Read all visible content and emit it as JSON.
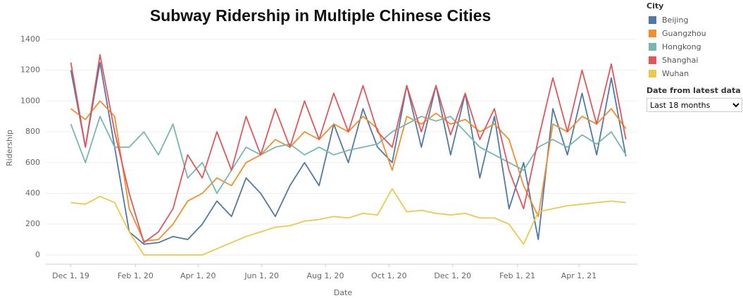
{
  "chart_data": {
    "type": "line",
    "title": "Subway Ridership in Multiple Chinese Cities",
    "x_label": "Date",
    "y_label": "Ridership",
    "legend_title": "City",
    "filter_label": "Date from latest data",
    "filter_value": "Last 18 months",
    "x": [
      "2019-12-01",
      "2019-12-15",
      "2019-12-29",
      "2020-01-12",
      "2020-01-26",
      "2020-02-09",
      "2020-02-23",
      "2020-03-08",
      "2020-03-22",
      "2020-04-05",
      "2020-04-19",
      "2020-05-03",
      "2020-05-17",
      "2020-05-31",
      "2020-06-14",
      "2020-06-28",
      "2020-07-12",
      "2020-07-26",
      "2020-08-09",
      "2020-08-23",
      "2020-09-06",
      "2020-09-20",
      "2020-10-04",
      "2020-10-18",
      "2020-11-01",
      "2020-11-15",
      "2020-11-29",
      "2020-12-13",
      "2020-12-27",
      "2021-01-10",
      "2021-01-24",
      "2021-02-07",
      "2021-02-21",
      "2021-03-07",
      "2021-03-21",
      "2021-04-04",
      "2021-04-18",
      "2021-05-02",
      "2021-05-16"
    ],
    "series": [
      {
        "name": "Beijing",
        "color": "#4e79a7",
        "values": [
          1200,
          700,
          1250,
          700,
          150,
          70,
          80,
          120,
          100,
          200,
          350,
          250,
          500,
          400,
          250,
          450,
          600,
          450,
          850,
          600,
          950,
          700,
          600,
          1100,
          700,
          1100,
          650,
          1050,
          500,
          900,
          300,
          600,
          100,
          950,
          650,
          1050,
          650,
          1150,
          640
        ]
      },
      {
        "name": "Guangzhou",
        "color": "#f28e2b",
        "values": [
          950,
          880,
          1000,
          900,
          300,
          90,
          100,
          200,
          350,
          400,
          500,
          450,
          600,
          650,
          750,
          700,
          800,
          750,
          850,
          800,
          900,
          820,
          550,
          900,
          850,
          920,
          850,
          880,
          800,
          850,
          750,
          450,
          250,
          850,
          800,
          900,
          850,
          950,
          820
        ]
      },
      {
        "name": "Hongkong",
        "color": "#76b7b2",
        "values": [
          850,
          600,
          900,
          700,
          700,
          800,
          650,
          850,
          500,
          600,
          400,
          550,
          700,
          650,
          700,
          720,
          650,
          700,
          650,
          680,
          700,
          720,
          800,
          850,
          900,
          870,
          900,
          800,
          700,
          650,
          600,
          550,
          700,
          750,
          700,
          780,
          720,
          800,
          650
        ]
      },
      {
        "name": "Shanghai",
        "color": "#e15759",
        "values": [
          1250,
          700,
          1300,
          800,
          400,
          80,
          150,
          300,
          650,
          500,
          800,
          550,
          900,
          650,
          950,
          700,
          1000,
          750,
          1050,
          800,
          1100,
          800,
          700,
          1100,
          800,
          1100,
          780,
          1050,
          750,
          950,
          550,
          300,
          750,
          1150,
          800,
          1200,
          850,
          1240,
          750
        ]
      },
      {
        "name": "Wuhan",
        "color": "#edc948",
        "values": [
          340,
          330,
          380,
          340,
          150,
          0,
          0,
          0,
          0,
          0,
          40,
          80,
          120,
          150,
          180,
          190,
          220,
          230,
          250,
          240,
          270,
          260,
          430,
          280,
          290,
          270,
          260,
          270,
          240,
          240,
          200,
          70,
          280,
          300,
          320,
          330,
          340,
          350,
          340
        ]
      }
    ],
    "xlim": [
      "2019-11-07",
      "2021-05-27"
    ],
    "xticks": [
      {
        "value": "2019-12-01",
        "label": "Dec 1, 19"
      },
      {
        "value": "2020-02-01",
        "label": "Feb 1, 20"
      },
      {
        "value": "2020-04-01",
        "label": "Apr 1, 20"
      },
      {
        "value": "2020-06-01",
        "label": "Jun 1, 20"
      },
      {
        "value": "2020-08-01",
        "label": "Aug 1, 20"
      },
      {
        "value": "2020-10-01",
        "label": "Oct 1, 20"
      },
      {
        "value": "2020-12-01",
        "label": "Dec 1, 20"
      },
      {
        "value": "2021-02-01",
        "label": "Feb 1, 21"
      },
      {
        "value": "2021-04-01",
        "label": "Apr 1, 21"
      }
    ],
    "ylim": [
      -60,
      1450
    ],
    "yticks": [
      0,
      200,
      400,
      600,
      800,
      1000,
      1200,
      1400
    ],
    "grid": true
  }
}
